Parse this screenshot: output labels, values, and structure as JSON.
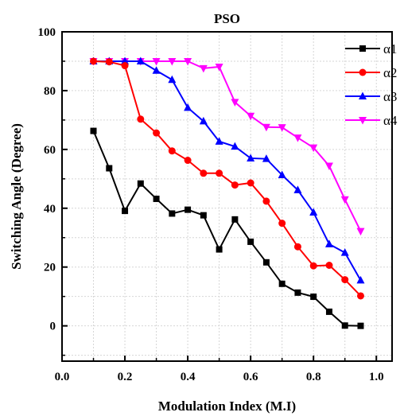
{
  "chart_data": {
    "type": "line",
    "title": "PSO",
    "xlabel": "Modulation Index (M.I)",
    "ylabel": "Switching Angle (Degree)",
    "xlim": [
      0.0,
      1.05
    ],
    "ylim": [
      -12,
      100
    ],
    "xticks": [
      0.0,
      0.2,
      0.4,
      0.6,
      0.8,
      1.0
    ],
    "xtick_labels": [
      "0.0",
      "0.2",
      "0.4",
      "0.6",
      "0.8",
      "1.0"
    ],
    "yticks": [
      0,
      20,
      40,
      60,
      80,
      100
    ],
    "ytick_labels": [
      "0",
      "20",
      "40",
      "60",
      "80",
      "100"
    ],
    "grid": true,
    "legend_position": "top-right",
    "x": [
      0.1,
      0.15,
      0.2,
      0.25,
      0.3,
      0.35,
      0.4,
      0.45,
      0.5,
      0.55,
      0.6,
      0.65,
      0.7,
      0.75,
      0.8,
      0.85,
      0.9,
      0.95
    ],
    "series": [
      {
        "name": "α1",
        "color": "#000000",
        "marker": "square",
        "values": [
          66.3,
          53.6,
          39.1,
          48.4,
          43.2,
          38.2,
          39.5,
          37.6,
          26.0,
          36.2,
          28.6,
          21.6,
          14.3,
          11.3,
          9.9,
          4.8,
          0.1,
          0.0
        ]
      },
      {
        "name": "α2",
        "color": "#ff0000",
        "marker": "circle",
        "values": [
          90.0,
          89.8,
          88.5,
          70.3,
          65.6,
          59.5,
          56.3,
          51.9,
          51.9,
          47.9,
          48.6,
          42.4,
          34.9,
          26.9,
          20.4,
          20.6,
          15.7,
          10.2
        ]
      },
      {
        "name": "α3",
        "color": "#0000ff",
        "marker": "triangle-up",
        "values": [
          90.0,
          90.0,
          90.0,
          90.0,
          86.8,
          83.7,
          74.2,
          69.6,
          62.7,
          61.0,
          57.0,
          56.8,
          51.3,
          46.2,
          38.6,
          27.8,
          24.9,
          15.5
        ]
      },
      {
        "name": "α4",
        "color": "#ff00ff",
        "marker": "triangle-down",
        "values": [
          90.0,
          90.0,
          90.0,
          90.0,
          90.0,
          90.0,
          90.0,
          87.6,
          88.1,
          76.1,
          71.4,
          67.6,
          67.5,
          64.0,
          60.6,
          54.4,
          43.0,
          32.2
        ]
      }
    ]
  }
}
